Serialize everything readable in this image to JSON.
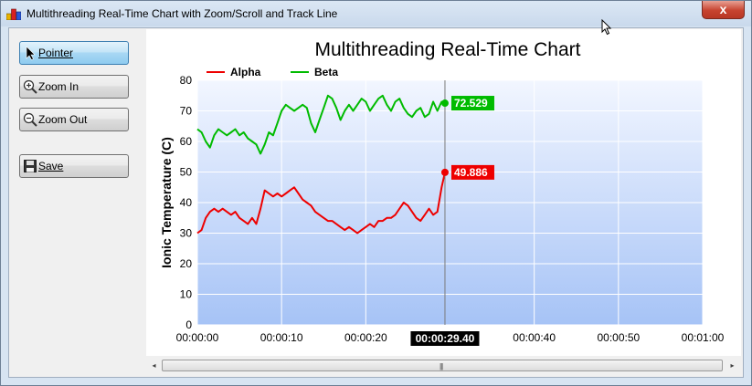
{
  "window": {
    "title": "Multithreading Real-Time Chart with Zoom/Scroll and Track Line",
    "close_label": "x"
  },
  "toolbar": {
    "pointer_label": "Pointer",
    "zoom_in_label": "Zoom In",
    "zoom_out_label": "Zoom Out",
    "save_label": "Save"
  },
  "scrollbar": {
    "left_arrow": "◂",
    "right_arrow": "▸",
    "grip": "|||"
  },
  "icons": {
    "app": "app-icon",
    "pointer": "pointer-icon",
    "zoom_in": "zoom-in-icon",
    "zoom_out": "zoom-out-icon",
    "save": "floppy-disk-icon"
  },
  "colors": {
    "alpha": "#ee0000",
    "beta": "#00bb00",
    "plot_top": "#f2f6ff",
    "plot_bottom": "#a6c3f6"
  },
  "chart_data": {
    "type": "line",
    "title": "Multithreading Real-Time Chart",
    "xlabel": "",
    "ylabel": "Ionic Temperature (C)",
    "ylim": [
      0,
      80
    ],
    "y_ticks": [
      "0",
      "10",
      "20",
      "30",
      "40",
      "50",
      "60",
      "70",
      "80"
    ],
    "x_ticks": [
      "00:00:00",
      "00:00:10",
      "00:00:20",
      "00:00:40",
      "00:00:50",
      "00:01:00"
    ],
    "xlim": [
      0,
      60
    ],
    "grid": true,
    "legend": "top-left",
    "series": [
      {
        "name": "Alpha",
        "x": [
          0,
          0.5,
          1,
          1.5,
          2,
          2.5,
          3,
          3.5,
          4,
          4.5,
          5,
          5.5,
          6,
          6.5,
          7,
          7.5,
          8,
          8.5,
          9,
          9.5,
          10,
          10.5,
          11,
          11.5,
          12,
          12.5,
          13,
          13.5,
          14,
          14.5,
          15,
          15.5,
          16,
          16.5,
          17,
          17.5,
          18,
          18.5,
          19,
          19.5,
          20,
          20.5,
          21,
          21.5,
          22,
          22.5,
          23,
          23.5,
          24,
          24.5,
          25,
          25.5,
          26,
          26.5,
          27,
          27.5,
          28,
          28.5,
          29,
          29.4
        ],
        "values": [
          30,
          31,
          35,
          37,
          38,
          37,
          38,
          37,
          36,
          37,
          35,
          34,
          33,
          35,
          33,
          38,
          44,
          43,
          42,
          43,
          42,
          43,
          44,
          45,
          43,
          41,
          40,
          39,
          37,
          36,
          35,
          34,
          34,
          33,
          32,
          31,
          32,
          31,
          30,
          31,
          32,
          33,
          32,
          34,
          34,
          35,
          35,
          36,
          38,
          40,
          39,
          37,
          35,
          34,
          36,
          38,
          36,
          37,
          45,
          49.9
        ]
      },
      {
        "name": "Beta",
        "x": [
          0,
          0.5,
          1,
          1.5,
          2,
          2.5,
          3,
          3.5,
          4,
          4.5,
          5,
          5.5,
          6,
          6.5,
          7,
          7.5,
          8,
          8.5,
          9,
          9.5,
          10,
          10.5,
          11,
          11.5,
          12,
          12.5,
          13,
          13.5,
          14,
          14.5,
          15,
          15.5,
          16,
          16.5,
          17,
          17.5,
          18,
          18.5,
          19,
          19.5,
          20,
          20.5,
          21,
          21.5,
          22,
          22.5,
          23,
          23.5,
          24,
          24.5,
          25,
          25.5,
          26,
          26.5,
          27,
          27.5,
          28,
          28.5,
          29,
          29.4
        ],
        "values": [
          64,
          63,
          60,
          58,
          62,
          64,
          63,
          62,
          63,
          64,
          62,
          63,
          61,
          60,
          59,
          56,
          59,
          63,
          62,
          66,
          70,
          72,
          71,
          70,
          71,
          72,
          71,
          66,
          63,
          67,
          71,
          75,
          74,
          71,
          67,
          70,
          72,
          70,
          72,
          74,
          73,
          70,
          72,
          74,
          75,
          72,
          70,
          73,
          74,
          71,
          69,
          68,
          70,
          71,
          68,
          69,
          73,
          70,
          73,
          72.529
        ]
      }
    ],
    "track_line": {
      "x": 29.4,
      "x_label": "00:00:29.40",
      "labels": [
        {
          "series": "Alpha",
          "value": 49.886,
          "text": "49.886"
        },
        {
          "series": "Beta",
          "value": 72.529,
          "text": "72.529"
        }
      ]
    }
  }
}
